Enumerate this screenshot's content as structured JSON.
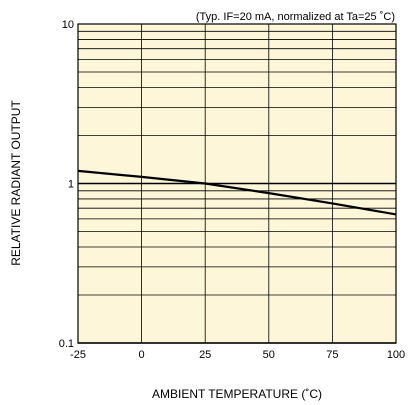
{
  "chart_data": {
    "type": "line",
    "subtitle": "(Typ. IF=20 mA, normalized at Ta=25 ˚C)",
    "xlabel": "AMBIENT TEMPERATURE (˚C)",
    "ylabel": "RELATIVE RADIANT OUTPUT",
    "xlim": [
      -25,
      100
    ],
    "ylim": [
      0.1,
      10
    ],
    "yscale": "log",
    "grid": true,
    "xticks": [
      "-25",
      "0",
      "25",
      "50",
      "75",
      "100"
    ],
    "yticks": [
      "0.1",
      "1",
      "10"
    ],
    "series": [
      {
        "x": [
          -25,
          0,
          25,
          50,
          75,
          100
        ],
        "y": [
          1.2,
          1.1,
          1.0,
          0.87,
          0.75,
          0.64
        ]
      }
    ]
  },
  "colors": {
    "plot_background": "#fdf6d8",
    "grid": "#000000",
    "curve": "#000000"
  }
}
